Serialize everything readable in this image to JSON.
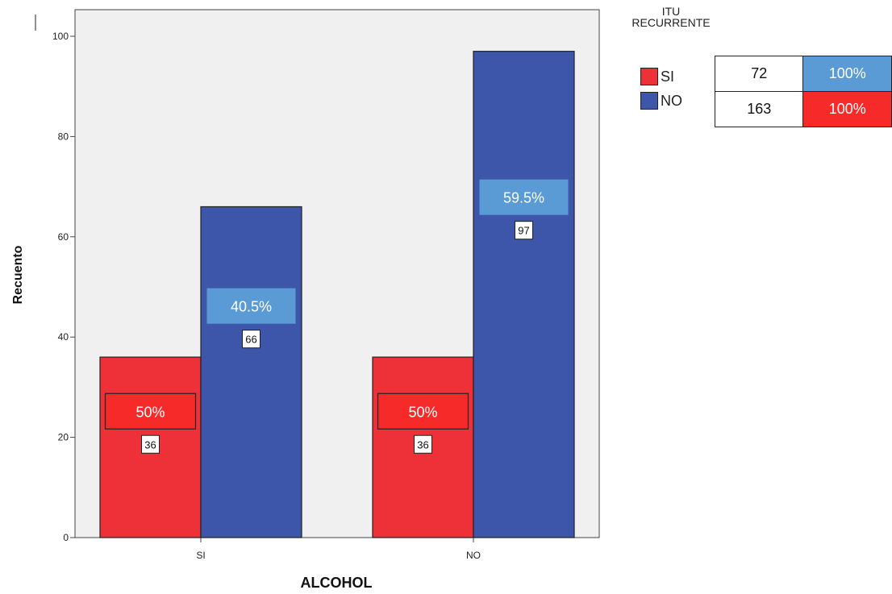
{
  "chart_data": {
    "type": "bar",
    "title": "",
    "xlabel": "ALCOHOL",
    "ylabel": "Recuento",
    "categories": [
      "SI",
      "NO"
    ],
    "ylim": [
      0,
      105
    ],
    "yticks": [
      0,
      20,
      40,
      60,
      80,
      100
    ],
    "ytick_labels": [
      "0",
      "20",
      "40",
      "60",
      "80",
      "100"
    ],
    "grid": false,
    "legend_title": "ITU RECURRENTE",
    "legend_title_lines": [
      "ITU",
      "RECURRENTE"
    ],
    "legend_position": "top-right",
    "series": [
      {
        "name": "SI",
        "color": "#ee3039",
        "values": [
          36,
          36
        ],
        "value_labels": [
          "36",
          "36"
        ],
        "pct_labels": [
          "50%",
          "50%"
        ],
        "pct_color": "#f72a2a"
      },
      {
        "name": "NO",
        "color": "#3e56aa",
        "values": [
          66,
          97
        ],
        "value_labels": [
          "66",
          "97"
        ],
        "pct_labels": [
          "40.5%",
          "59.5%"
        ],
        "pct_color": "#5b9bd5"
      }
    ],
    "summary_table": [
      {
        "count": "72",
        "pct": "100%",
        "pct_color": "#5b9bd5"
      },
      {
        "count": "163",
        "pct": "100%",
        "pct_color": "#f72a2a"
      }
    ],
    "plot_background": "#f0f0f0"
  }
}
